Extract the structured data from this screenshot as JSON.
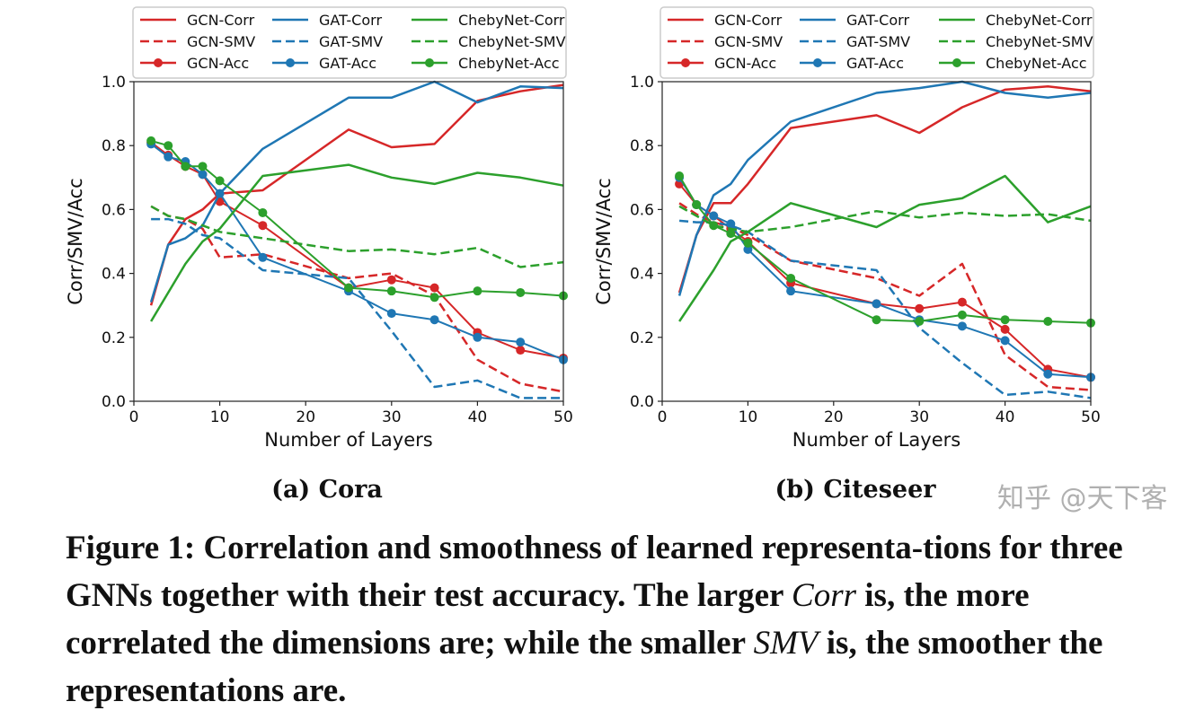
{
  "colors": {
    "GCN": "#d62728",
    "GAT": "#1f77b4",
    "ChebyNet": "#2ca02c"
  },
  "chart_data": [
    {
      "type": "line",
      "subcaption": "(a) Cora",
      "xlabel": "Number of Layers",
      "ylabel": "Corr/SMV/Acc",
      "xlim": [
        0,
        50
      ],
      "ylim": [
        0,
        1.0
      ],
      "xticks": [
        "0",
        "10",
        "20",
        "30",
        "40",
        "50"
      ],
      "yticks": [
        "0.0",
        "0.2",
        "0.4",
        "0.6",
        "0.8",
        "1.0"
      ],
      "legend": "top",
      "x": [
        2,
        4,
        6,
        8,
        10,
        15,
        25,
        30,
        35,
        40,
        45,
        50
      ],
      "series": [
        {
          "name": "GCN-Corr",
          "model": "GCN",
          "style": "solid",
          "values": [
            0.3,
            0.49,
            0.57,
            0.6,
            0.65,
            0.66,
            0.85,
            0.795,
            0.805,
            0.94,
            0.97,
            0.99
          ]
        },
        {
          "name": "GCN-SMV",
          "model": "GCN",
          "style": "dashed",
          "values": [
            0.61,
            0.58,
            0.57,
            0.54,
            0.45,
            0.46,
            0.385,
            0.4,
            0.33,
            0.13,
            0.055,
            0.03
          ]
        },
        {
          "name": "GCN-Acc",
          "model": "GCN",
          "style": "marker",
          "values": [
            0.81,
            0.77,
            0.735,
            0.71,
            0.625,
            0.55,
            0.355,
            0.38,
            0.355,
            0.215,
            0.16,
            0.135
          ]
        },
        {
          "name": "GAT-Corr",
          "model": "GAT",
          "style": "solid",
          "values": [
            0.31,
            0.49,
            0.51,
            0.55,
            0.65,
            0.79,
            0.95,
            0.95,
            1.0,
            0.935,
            0.985,
            0.98
          ]
        },
        {
          "name": "GAT-SMV",
          "model": "GAT",
          "style": "dashed",
          "values": [
            0.57,
            0.57,
            0.555,
            0.52,
            0.51,
            0.41,
            0.385,
            0.22,
            0.045,
            0.065,
            0.01,
            0.01
          ]
        },
        {
          "name": "GAT-Acc",
          "model": "GAT",
          "style": "marker",
          "values": [
            0.805,
            0.765,
            0.75,
            0.71,
            0.65,
            0.45,
            0.345,
            0.275,
            0.255,
            0.2,
            0.185,
            0.13
          ]
        },
        {
          "name": "ChebyNet-Corr",
          "model": "ChebyNet",
          "style": "solid",
          "values": [
            0.25,
            0.34,
            0.43,
            0.5,
            0.54,
            0.705,
            0.74,
            0.7,
            0.68,
            0.715,
            0.7,
            0.675
          ]
        },
        {
          "name": "ChebyNet-SMV",
          "model": "ChebyNet",
          "style": "dashed",
          "values": [
            0.61,
            0.58,
            0.57,
            0.55,
            0.53,
            0.51,
            0.47,
            0.475,
            0.46,
            0.48,
            0.42,
            0.435
          ]
        },
        {
          "name": "ChebyNet-Acc",
          "model": "ChebyNet",
          "style": "marker",
          "values": [
            0.815,
            0.8,
            0.735,
            0.735,
            0.69,
            0.59,
            0.355,
            0.345,
            0.325,
            0.345,
            0.34,
            0.33
          ]
        }
      ]
    },
    {
      "type": "line",
      "subcaption": "(b) Citeseer",
      "xlabel": "Number of Layers",
      "ylabel": "Corr/SMV/Acc",
      "xlim": [
        0,
        50
      ],
      "ylim": [
        0,
        1.0
      ],
      "xticks": [
        "0",
        "10",
        "20",
        "30",
        "40",
        "50"
      ],
      "yticks": [
        "0.0",
        "0.2",
        "0.4",
        "0.6",
        "0.8",
        "1.0"
      ],
      "legend": "top",
      "x": [
        2,
        4,
        6,
        8,
        10,
        15,
        25,
        30,
        35,
        40,
        45,
        50
      ],
      "series": [
        {
          "name": "GCN-Corr",
          "model": "GCN",
          "style": "solid",
          "values": [
            0.34,
            0.52,
            0.62,
            0.62,
            0.68,
            0.855,
            0.895,
            0.84,
            0.92,
            0.975,
            0.985,
            0.97
          ]
        },
        {
          "name": "GCN-SMV",
          "model": "GCN",
          "style": "dashed",
          "values": [
            0.62,
            0.585,
            0.56,
            0.545,
            0.52,
            0.44,
            0.385,
            0.33,
            0.43,
            0.145,
            0.045,
            0.035
          ]
        },
        {
          "name": "GCN-Acc",
          "model": "GCN",
          "style": "marker",
          "values": [
            0.68,
            0.615,
            0.58,
            0.54,
            0.5,
            0.37,
            0.305,
            0.29,
            0.31,
            0.225,
            0.1,
            0.075
          ]
        },
        {
          "name": "GAT-Corr",
          "model": "GAT",
          "style": "solid",
          "values": [
            0.33,
            0.52,
            0.645,
            0.68,
            0.755,
            0.875,
            0.965,
            0.98,
            1.0,
            0.965,
            0.95,
            0.965
          ]
        },
        {
          "name": "GAT-SMV",
          "model": "GAT",
          "style": "dashed",
          "values": [
            0.565,
            0.56,
            0.56,
            0.55,
            0.53,
            0.44,
            0.41,
            0.23,
            0.12,
            0.02,
            0.03,
            0.01
          ]
        },
        {
          "name": "GAT-Acc",
          "model": "GAT",
          "style": "marker",
          "values": [
            0.7,
            0.615,
            0.58,
            0.555,
            0.475,
            0.345,
            0.305,
            0.255,
            0.235,
            0.19,
            0.085,
            0.075
          ]
        },
        {
          "name": "ChebyNet-Corr",
          "model": "ChebyNet",
          "style": "solid",
          "values": [
            0.25,
            0.33,
            0.41,
            0.5,
            0.53,
            0.62,
            0.545,
            0.615,
            0.635,
            0.705,
            0.56,
            0.61
          ]
        },
        {
          "name": "ChebyNet-SMV",
          "model": "ChebyNet",
          "style": "dashed",
          "values": [
            0.61,
            0.58,
            0.55,
            0.54,
            0.53,
            0.545,
            0.595,
            0.575,
            0.59,
            0.58,
            0.585,
            0.565
          ]
        },
        {
          "name": "ChebyNet-Acc",
          "model": "ChebyNet",
          "style": "marker",
          "values": [
            0.705,
            0.615,
            0.55,
            0.525,
            0.495,
            0.385,
            0.255,
            0.25,
            0.27,
            0.255,
            0.25,
            0.245
          ]
        }
      ]
    }
  ],
  "caption": {
    "p1": "Figure 1: Correlation and smoothness of learned representa-tions for three GNNs together with their test accuracy. The larger ",
    "corr": "Corr",
    "p2": " is, the more correlated the dimensions are; while the smaller ",
    "smv": "SMV",
    "p3": " is, the smoother the representations are."
  },
  "watermark": "知乎 @天下客"
}
